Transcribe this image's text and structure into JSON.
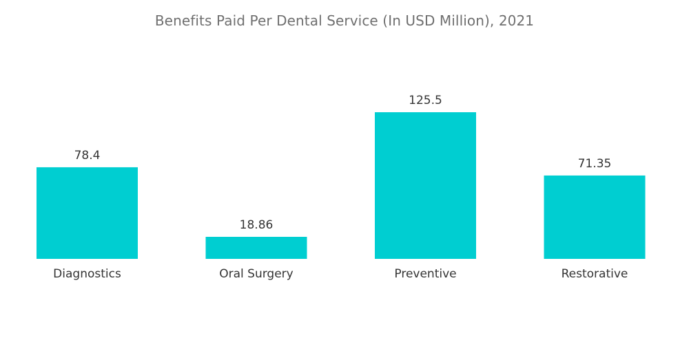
{
  "chart_data": {
    "type": "bar",
    "title": "Benefits Paid Per Dental Service (In USD Million), 2021",
    "xlabel": "",
    "ylabel": "",
    "categories": [
      "Diagnostics",
      "Oral Surgery",
      "Preventive",
      "Restorative"
    ],
    "values": [
      78.4,
      18.86,
      125.5,
      71.35
    ],
    "value_labels": [
      "78.4",
      "18.86",
      "125.5",
      "71.35"
    ],
    "ylim": [
      0,
      125.5
    ],
    "grid": false,
    "legend": "none",
    "bar_color": "#00ced1"
  }
}
